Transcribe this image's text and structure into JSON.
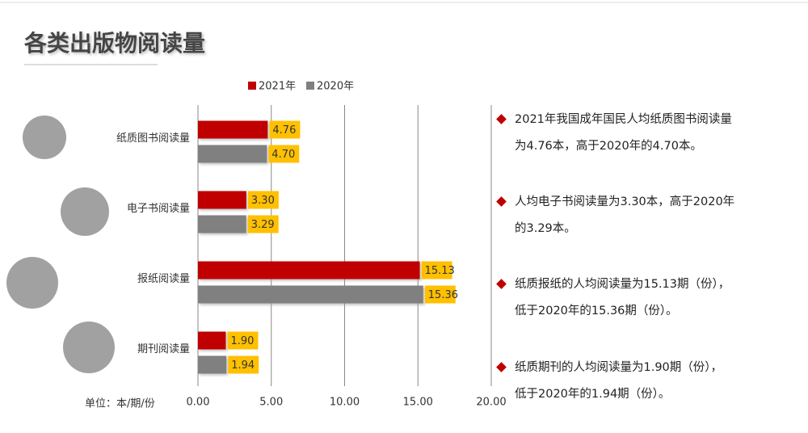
{
  "chart_data": {
    "type": "bar",
    "orientation": "horizontal",
    "title": "各类出版物阅读量",
    "unit_label": "单位：本/期/份",
    "categories": [
      "纸质图书阅读量",
      "电子书阅读量",
      "报纸阅读量",
      "期刊阅读量"
    ],
    "series": [
      {
        "name": "2021年",
        "color": "#c00000",
        "values": [
          4.76,
          3.3,
          15.13,
          1.9
        ],
        "value_labels": [
          "4.76",
          "3.30",
          "15.13",
          "1.90"
        ]
      },
      {
        "name": "2020年",
        "color": "#808080",
        "values": [
          4.7,
          3.29,
          15.36,
          1.94
        ],
        "value_labels": [
          "4.70",
          "3.29",
          "15.36",
          "1.94"
        ]
      }
    ],
    "xlim": [
      0,
      20
    ],
    "xticks": [
      {
        "value": 0,
        "label": "0.00"
      },
      {
        "value": 5,
        "label": "5.00"
      },
      {
        "value": 10,
        "label": "10.00"
      },
      {
        "value": 15,
        "label": "15.00"
      },
      {
        "value": 20,
        "label": "20.00"
      }
    ],
    "grid": true,
    "legend": "top",
    "value_label_color": "#ffc000",
    "notes": [
      [
        "2021年我国成年国民人均纸质图书阅读量",
        "为4.76本，高于2020年的4.70本。"
      ],
      [
        "人均电子书阅读量为3.30本，高于2020年",
        "的3.29本。"
      ],
      [
        "纸质报纸的人均阅读量为15.13期（份），",
        "低于2020年的15.36期（份）。"
      ],
      [
        "纸质期刊的人均阅读量为1.90期（份），",
        "低于2020年的1.94期（份）。"
      ]
    ]
  }
}
